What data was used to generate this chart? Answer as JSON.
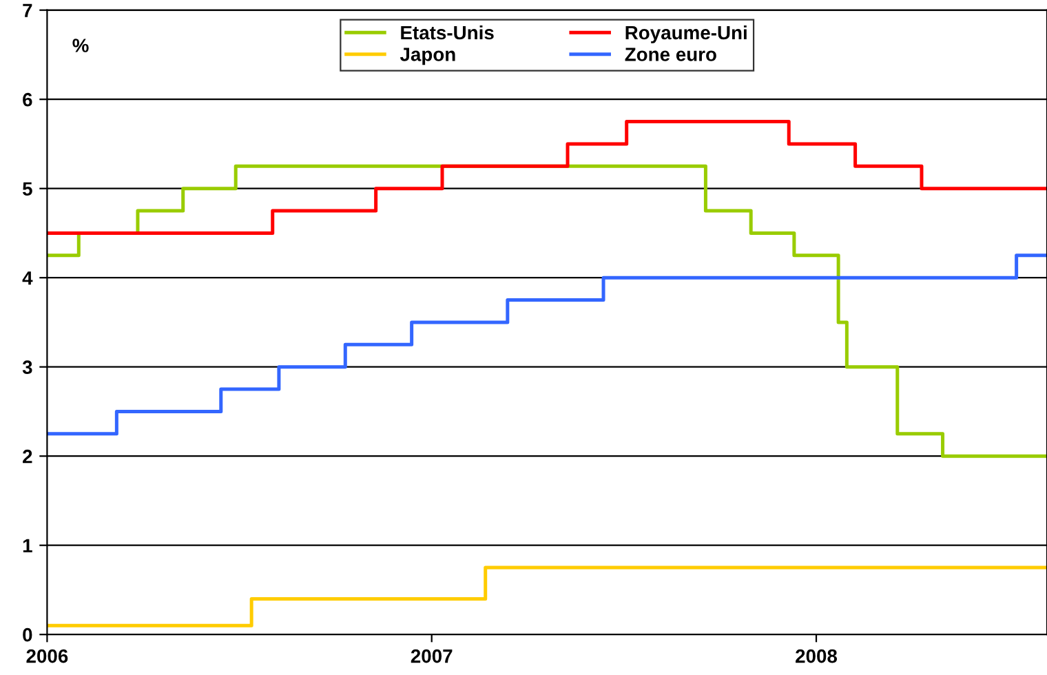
{
  "chart_data": {
    "type": "step",
    "annotations": [
      "%"
    ],
    "xlim": [
      "2006-01-01",
      "2008-08-07"
    ],
    "xticks": [
      {
        "value": "2006-01-01",
        "label": "2006"
      },
      {
        "value": "2007-01-01",
        "label": "2007"
      },
      {
        "value": "2008-01-01",
        "label": "2008"
      }
    ],
    "ylim": [
      0,
      7
    ],
    "yticks": [
      0,
      1,
      2,
      3,
      4,
      5,
      6,
      7
    ],
    "grid": "y",
    "legend": "top",
    "line_style": "solid",
    "marker": "none",
    "series": [
      {
        "name": "Etats-Unis",
        "color": "#99cc00",
        "x": [
          "2006-01-01",
          "2006-01-31",
          "2006-03-28",
          "2006-05-10",
          "2006-06-29",
          "2007-09-18",
          "2007-10-31",
          "2007-12-11",
          "2008-01-22",
          "2008-01-30",
          "2008-03-18",
          "2008-04-30",
          "2008-08-07"
        ],
        "values": [
          4.25,
          4.5,
          4.75,
          5.0,
          5.25,
          4.75,
          4.5,
          4.25,
          3.5,
          3.0,
          2.25,
          2.0,
          2.0
        ]
      },
      {
        "name": "Royaume-Uni",
        "color": "#ff0000",
        "x": [
          "2006-01-01",
          "2006-08-03",
          "2006-11-09",
          "2007-01-11",
          "2007-05-10",
          "2007-07-05",
          "2007-12-06",
          "2008-02-07",
          "2008-04-10",
          "2008-08-07"
        ],
        "values": [
          4.5,
          4.75,
          5.0,
          5.25,
          5.5,
          5.75,
          5.5,
          5.25,
          5.0,
          5.0
        ]
      },
      {
        "name": "Japon",
        "color": "#ffcc00",
        "x": [
          "2006-01-01",
          "2006-07-14",
          "2007-02-21",
          "2008-08-07"
        ],
        "values": [
          0.1,
          0.4,
          0.75,
          0.75
        ]
      },
      {
        "name": "Zone euro",
        "color": "#3366ff",
        "x": [
          "2006-01-01",
          "2006-03-08",
          "2006-06-15",
          "2006-08-09",
          "2006-10-11",
          "2006-12-13",
          "2007-03-14",
          "2007-06-13",
          "2008-07-09",
          "2008-08-07"
        ],
        "values": [
          2.25,
          2.5,
          2.75,
          3.0,
          3.25,
          3.5,
          3.75,
          4.0,
          4.25,
          4.25
        ]
      }
    ]
  }
}
